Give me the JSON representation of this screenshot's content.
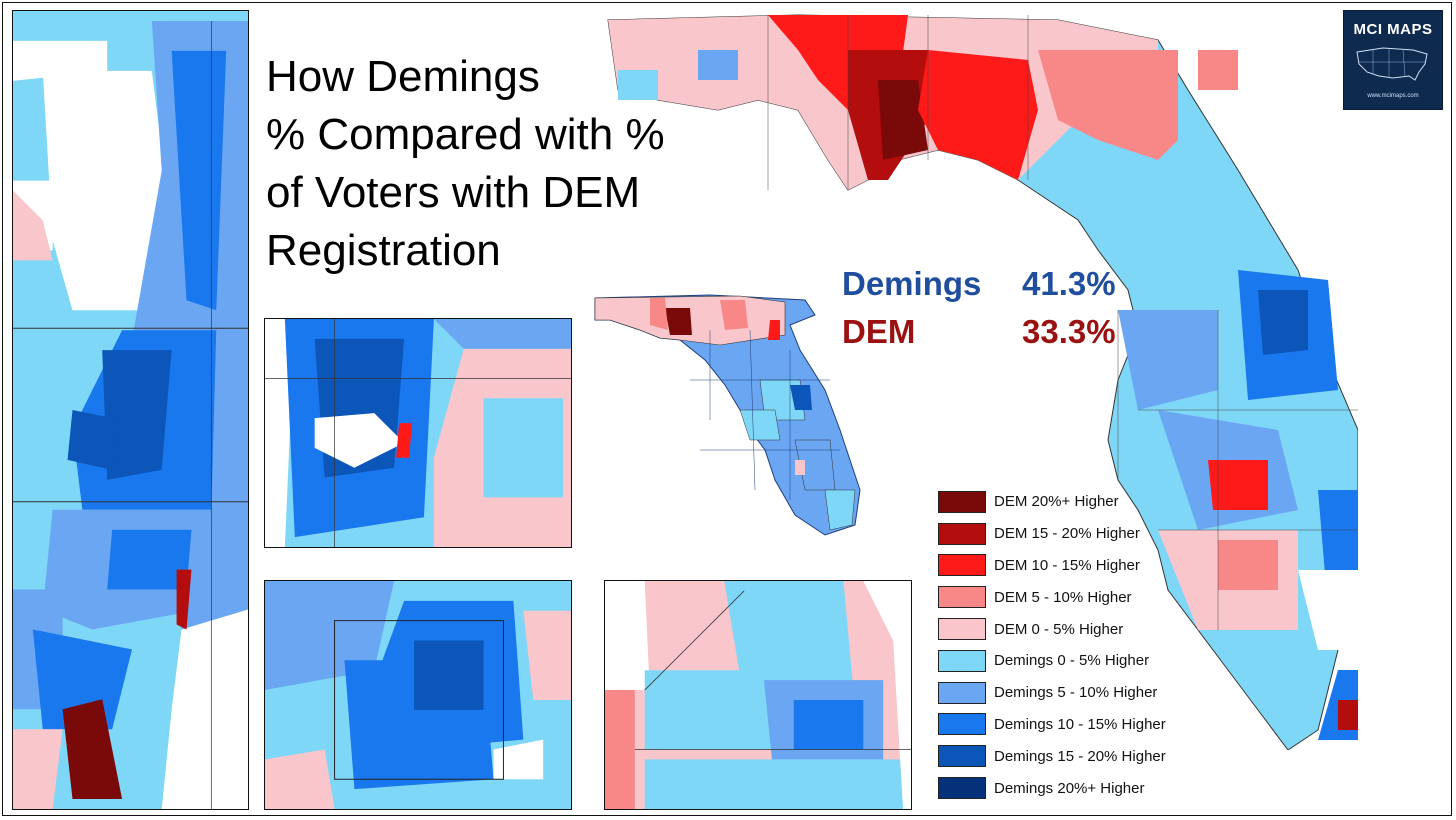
{
  "title_lines": [
    "How Demings",
    "% Compared with %",
    "of Voters with DEM",
    "Registration"
  ],
  "stats": {
    "demings_label": "Demings",
    "demings_value": "41.3%",
    "dem_label": "DEM",
    "dem_value": "33.3%",
    "demings_color": "#1f4e9e",
    "dem_color": "#9b1111"
  },
  "logo": {
    "text": "MCI MAPS",
    "url": "www.mcimaps.com"
  },
  "legend": [
    {
      "label": "DEM 20%+ Higher",
      "color": "#7a0a0a"
    },
    {
      "label": "DEM 15 - 20% Higher",
      "color": "#b30d0d"
    },
    {
      "label": "DEM 10 - 15% Higher",
      "color": "#ff1a1a"
    },
    {
      "label": "DEM 5 - 10% Higher",
      "color": "#f88787"
    },
    {
      "label": "DEM 0 - 5% Higher",
      "color": "#f8c6cb"
    },
    {
      "label": "Demings 0 - 5% Higher",
      "color": "#7fd7f7"
    },
    {
      "label": "Demings 5 - 10% Higher",
      "color": "#6aa6f2"
    },
    {
      "label": "Demings 10 - 15% Higher",
      "color": "#1a78ee"
    },
    {
      "label": "Demings 15 - 20% Higher",
      "color": "#0b56b8"
    },
    {
      "label": "Demings 20%+ Higher",
      "color": "#05307a"
    }
  ]
}
